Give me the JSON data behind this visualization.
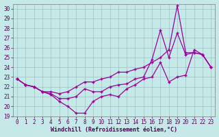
{
  "xlabel": "Windchill (Refroidissement éolien,°C)",
  "xlim_min": -0.5,
  "xlim_max": 23.5,
  "ylim_min": 19.0,
  "ylim_max": 30.5,
  "yticks": [
    19,
    20,
    21,
    22,
    23,
    24,
    25,
    26,
    27,
    28,
    29,
    30
  ],
  "xticks": [
    0,
    1,
    2,
    3,
    4,
    5,
    6,
    7,
    8,
    9,
    10,
    11,
    12,
    13,
    14,
    15,
    16,
    17,
    18,
    19,
    20,
    21,
    22,
    23
  ],
  "background_color": "#c5e8e8",
  "grid_color": "#a0c0c0",
  "line_color": "#990099",
  "line1_y": [
    22.8,
    22.2,
    22.0,
    21.5,
    21.2,
    20.5,
    20.0,
    19.3,
    19.3,
    20.5,
    21.0,
    21.2,
    21.0,
    21.8,
    22.2,
    22.8,
    23.0,
    24.5,
    22.5,
    23.0,
    23.2,
    25.8,
    25.3,
    24.0
  ],
  "line2_y": [
    22.8,
    22.2,
    22.0,
    21.5,
    21.3,
    20.8,
    20.8,
    21.0,
    21.8,
    21.5,
    21.5,
    22.0,
    22.2,
    22.3,
    22.8,
    23.0,
    24.8,
    27.8,
    25.0,
    27.5,
    25.3,
    25.5,
    25.3,
    24.0
  ],
  "line3_y": [
    22.8,
    22.2,
    22.0,
    21.5,
    21.5,
    21.3,
    21.5,
    22.0,
    22.5,
    22.5,
    22.8,
    23.0,
    23.5,
    23.5,
    23.8,
    24.0,
    24.5,
    25.0,
    25.8,
    30.3,
    25.5,
    25.5,
    25.3,
    24.0
  ],
  "tick_color": "#550055",
  "tick_fontsize": 5.5,
  "xlabel_fontsize": 6.0
}
